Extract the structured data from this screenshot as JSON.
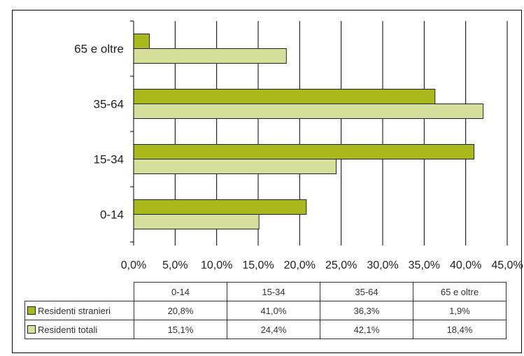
{
  "chart_data": {
    "type": "bar",
    "orientation": "horizontal",
    "categories": [
      "0-14",
      "15-34",
      "35-64",
      "65 e oltre"
    ],
    "series": [
      {
        "name": "Residenti stranieri",
        "color": "#a9b81c",
        "values": [
          20.8,
          41.0,
          36.3,
          1.9
        ]
      },
      {
        "name": "Residenti totali",
        "color": "#d7df9c",
        "values": [
          15.1,
          24.4,
          42.1,
          18.4
        ]
      }
    ],
    "xlim": [
      0,
      45
    ],
    "x_ticks": [
      "0,0%",
      "5,0%",
      "10,0%",
      "15,0%",
      "20,0%",
      "25,0%",
      "30,0%",
      "35,0%",
      "40,0%",
      "45,0%"
    ],
    "grid": "vertical",
    "legend": "table-left",
    "table": {
      "headers": [
        "0-14",
        "15-34",
        "35-64",
        "65 e oltre"
      ],
      "rows": [
        {
          "label": "Residenti stranieri",
          "cells": [
            "20,8%",
            "41,0%",
            "36,3%",
            "1,9%"
          ]
        },
        {
          "label": "Residenti totali",
          "cells": [
            "15,1%",
            "24,4%",
            "42,1%",
            "18,4%"
          ]
        }
      ]
    }
  }
}
